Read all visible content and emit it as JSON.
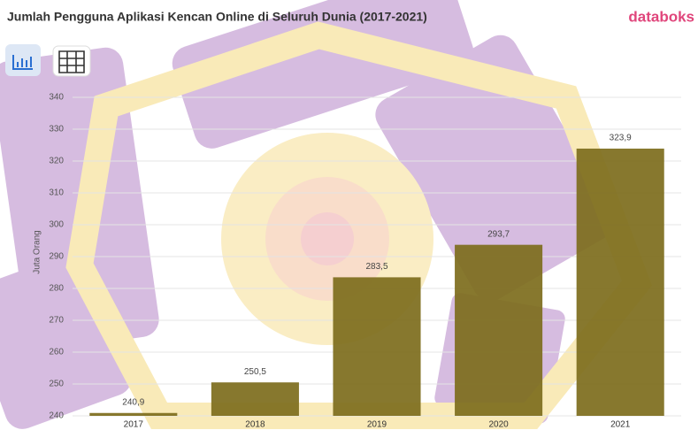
{
  "chart_data": {
    "type": "bar",
    "title": "Jumlah Pengguna Aplikasi Kencan Online di Seluruh Dunia (2017-2021)",
    "brand": "databoks",
    "ylabel": "Juta Orang",
    "categories": [
      "2017",
      "2018",
      "2019",
      "2020",
      "2021"
    ],
    "values": [
      240.9,
      250.5,
      283.5,
      293.7,
      323.9
    ],
    "value_labels": [
      "240,9",
      "250,5",
      "283,5",
      "293,7",
      "323,9"
    ],
    "color": "#7d6d1c",
    "ylim": [
      240,
      345
    ],
    "yticks": [
      240,
      250,
      260,
      270,
      280,
      290,
      300,
      310,
      320,
      330,
      340
    ],
    "grid": true
  }
}
